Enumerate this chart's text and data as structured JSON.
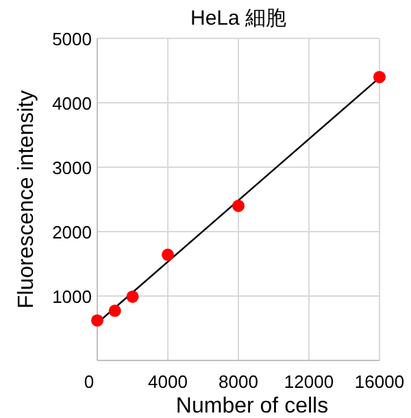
{
  "chart_data": {
    "type": "scatter",
    "title": "HeLa 細胞",
    "xlabel": "Number of cells",
    "ylabel": "Fluorescence intensity",
    "xlim": [
      0,
      16000
    ],
    "xticks": [
      0,
      4000,
      8000,
      12000,
      16000
    ],
    "ylim": [
      0,
      5000
    ],
    "yticks": [
      {
        "value": 0,
        "label": null
      },
      1000,
      2000,
      3000,
      4000,
      5000
    ],
    "grid": true,
    "marker": "circle",
    "series": [
      {
        "type": "line",
        "color": "#000000",
        "marker": "none",
        "x": [
          0,
          16000
        ],
        "values": [
          580,
          4390
        ]
      },
      {
        "color": "#ff0000",
        "x": [
          0,
          1000,
          2000,
          4000,
          8000,
          16000
        ],
        "values": [
          620,
          770,
          990,
          1640,
          2400,
          4400
        ]
      }
    ]
  }
}
